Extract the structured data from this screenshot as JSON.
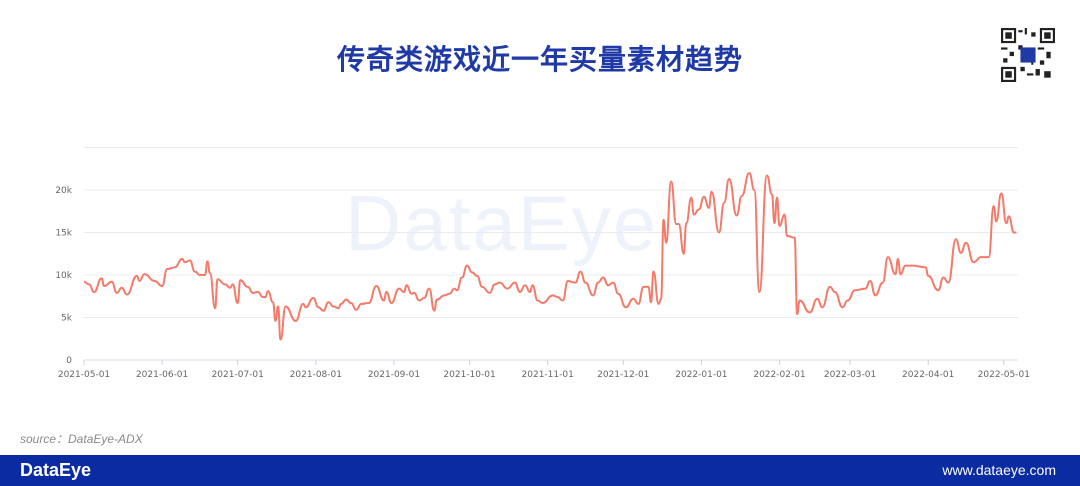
{
  "header": {
    "title": "传奇类游戏近一年买量素材趋势"
  },
  "watermark": "DataEye",
  "source": "source：DataEye-ADX",
  "footer": {
    "logo": "DataEye",
    "url": "www.dataeye.com"
  },
  "colors": {
    "line": "#f47a6a",
    "title": "#1f3aa6",
    "footer": "#0a2ba1",
    "grid": "#e8ecf2"
  },
  "chart_data": {
    "type": "line",
    "title": "",
    "xlabel": "",
    "ylabel": "",
    "ylim": [
      0,
      25000
    ],
    "grid": true,
    "y_ticks": [
      {
        "value": 0,
        "label": "0"
      },
      {
        "value": 5000,
        "label": "5k"
      },
      {
        "value": 10000,
        "label": "10k"
      },
      {
        "value": 15000,
        "label": "15k"
      },
      {
        "value": 20000,
        "label": "20k"
      }
    ],
    "x_ticks": [
      "2021-05-01",
      "2021-06-01",
      "2021-07-01",
      "2021-08-01",
      "2021-09-01",
      "2021-10-01",
      "2021-11-01",
      "2021-12-01",
      "2022-01-01",
      "2022-02-01",
      "2022-03-01",
      "2022-04-01",
      "2022-05-01"
    ],
    "series": [
      {
        "points": [
          [
            "2021-05-01",
            9200
          ],
          [
            "2021-05-03",
            8900
          ],
          [
            "2021-05-05",
            8000
          ],
          [
            "2021-05-08",
            9600
          ],
          [
            "2021-05-09",
            8700
          ],
          [
            "2021-05-12",
            9200
          ],
          [
            "2021-05-14",
            7900
          ],
          [
            "2021-05-16",
            8500
          ],
          [
            "2021-05-18",
            7700
          ],
          [
            "2021-05-22",
            9900
          ],
          [
            "2021-05-23",
            9300
          ],
          [
            "2021-05-25",
            10100
          ],
          [
            "2021-05-29",
            9300
          ],
          [
            "2021-06-01",
            8700
          ],
          [
            "2021-06-03",
            10700
          ],
          [
            "2021-06-06",
            10900
          ],
          [
            "2021-06-09",
            11900
          ],
          [
            "2021-06-10",
            11500
          ],
          [
            "2021-06-12",
            11700
          ],
          [
            "2021-06-14",
            10400
          ],
          [
            "2021-06-16",
            10000
          ],
          [
            "2021-06-18",
            10000
          ],
          [
            "2021-06-19",
            11600
          ],
          [
            "2021-06-20",
            10200
          ],
          [
            "2021-06-22",
            6100
          ],
          [
            "2021-06-23",
            9500
          ],
          [
            "2021-06-26",
            8900
          ],
          [
            "2021-06-28",
            8500
          ],
          [
            "2021-06-29",
            8900
          ],
          [
            "2021-07-01",
            6700
          ],
          [
            "2021-07-02",
            9400
          ],
          [
            "2021-07-05",
            8600
          ],
          [
            "2021-07-07",
            7900
          ],
          [
            "2021-07-09",
            8000
          ],
          [
            "2021-07-11",
            7400
          ],
          [
            "2021-07-12",
            7400
          ],
          [
            "2021-07-13",
            8100
          ],
          [
            "2021-07-15",
            6800
          ],
          [
            "2021-07-16",
            4600
          ],
          [
            "2021-07-17",
            6300
          ],
          [
            "2021-07-18",
            2400
          ],
          [
            "2021-07-20",
            6300
          ],
          [
            "2021-07-24",
            4600
          ],
          [
            "2021-07-27",
            6600
          ],
          [
            "2021-07-28",
            6200
          ],
          [
            "2021-07-31",
            7300
          ],
          [
            "2021-08-02",
            6200
          ],
          [
            "2021-08-04",
            5800
          ],
          [
            "2021-08-06",
            6800
          ],
          [
            "2021-08-08",
            6300
          ],
          [
            "2021-08-10",
            6100
          ],
          [
            "2021-08-11",
            6600
          ],
          [
            "2021-08-13",
            7100
          ],
          [
            "2021-08-15",
            6700
          ],
          [
            "2021-08-17",
            5900
          ],
          [
            "2021-08-19",
            6600
          ],
          [
            "2021-08-22",
            6700
          ],
          [
            "2021-08-25",
            8700
          ],
          [
            "2021-08-28",
            7000
          ],
          [
            "2021-08-29",
            8000
          ],
          [
            "2021-08-31",
            6700
          ],
          [
            "2021-09-03",
            8400
          ],
          [
            "2021-09-05",
            8000
          ],
          [
            "2021-09-06",
            8800
          ],
          [
            "2021-09-08",
            7800
          ],
          [
            "2021-09-09",
            7900
          ],
          [
            "2021-09-11",
            7000
          ],
          [
            "2021-09-13",
            7300
          ],
          [
            "2021-09-15",
            8400
          ],
          [
            "2021-09-17",
            5800
          ],
          [
            "2021-09-18",
            7100
          ],
          [
            "2021-09-21",
            7600
          ],
          [
            "2021-09-23",
            7800
          ],
          [
            "2021-09-25",
            8400
          ],
          [
            "2021-09-26",
            8200
          ],
          [
            "2021-09-28",
            9700
          ],
          [
            "2021-09-30",
            11100
          ],
          [
            "2021-10-02",
            10300
          ],
          [
            "2021-10-04",
            9900
          ],
          [
            "2021-10-06",
            8600
          ],
          [
            "2021-10-09",
            7900
          ],
          [
            "2021-10-11",
            8900
          ],
          [
            "2021-10-13",
            9100
          ],
          [
            "2021-10-16",
            8400
          ],
          [
            "2021-10-19",
            9100
          ],
          [
            "2021-10-21",
            8000
          ],
          [
            "2021-10-23",
            8800
          ],
          [
            "2021-10-25",
            8000
          ],
          [
            "2021-10-26",
            8800
          ],
          [
            "2021-10-28",
            7000
          ],
          [
            "2021-10-30",
            6700
          ],
          [
            "2021-11-03",
            7600
          ],
          [
            "2021-11-05",
            7400
          ],
          [
            "2021-11-07",
            7000
          ],
          [
            "2021-11-09",
            9300
          ],
          [
            "2021-11-12",
            9100
          ],
          [
            "2021-11-14",
            10400
          ],
          [
            "2021-11-16",
            9100
          ],
          [
            "2021-11-19",
            7600
          ],
          [
            "2021-11-21",
            9100
          ],
          [
            "2021-11-23",
            9700
          ],
          [
            "2021-11-25",
            8800
          ],
          [
            "2021-11-27",
            9100
          ],
          [
            "2021-11-29",
            7800
          ],
          [
            "2021-12-02",
            6200
          ],
          [
            "2021-12-05",
            7200
          ],
          [
            "2021-12-07",
            6600
          ],
          [
            "2021-12-09",
            8600
          ],
          [
            "2021-12-11",
            8600
          ],
          [
            "2021-12-12",
            6800
          ],
          [
            "2021-12-13",
            10400
          ],
          [
            "2021-12-15",
            6600
          ],
          [
            "2021-12-16",
            7200
          ],
          [
            "2021-12-17",
            16500
          ],
          [
            "2021-12-18",
            13800
          ],
          [
            "2021-12-20",
            21000
          ],
          [
            "2021-12-22",
            16000
          ],
          [
            "2021-12-23",
            16000
          ],
          [
            "2021-12-25",
            12500
          ],
          [
            "2021-12-26",
            16100
          ],
          [
            "2021-12-28",
            19100
          ],
          [
            "2021-12-29",
            17100
          ],
          [
            "2021-12-31",
            17700
          ],
          [
            "2022-01-02",
            19200
          ],
          [
            "2022-01-04",
            17900
          ],
          [
            "2022-01-05",
            19800
          ],
          [
            "2022-01-08",
            15000
          ],
          [
            "2022-01-10",
            18500
          ],
          [
            "2022-01-12",
            21300
          ],
          [
            "2022-01-15",
            17000
          ],
          [
            "2022-01-17",
            19300
          ],
          [
            "2022-01-20",
            22000
          ],
          [
            "2022-01-22",
            20000
          ],
          [
            "2022-01-24",
            8000
          ],
          [
            "2022-01-27",
            21700
          ],
          [
            "2022-01-29",
            19500
          ],
          [
            "2022-01-30",
            16100
          ],
          [
            "2022-01-31",
            19100
          ],
          [
            "2022-02-01",
            15800
          ],
          [
            "2022-02-03",
            17100
          ],
          [
            "2022-02-04",
            14600
          ],
          [
            "2022-02-07",
            14400
          ],
          [
            "2022-02-08",
            5400
          ],
          [
            "2022-02-09",
            7000
          ],
          [
            "2022-02-13",
            5600
          ],
          [
            "2022-02-16",
            7200
          ],
          [
            "2022-02-18",
            6200
          ],
          [
            "2022-02-21",
            8600
          ],
          [
            "2022-02-23",
            8000
          ],
          [
            "2022-02-26",
            6200
          ],
          [
            "2022-02-28",
            7000
          ],
          [
            "2022-03-03",
            8200
          ],
          [
            "2022-03-07",
            8400
          ],
          [
            "2022-03-09",
            9300
          ],
          [
            "2022-03-11",
            7600
          ],
          [
            "2022-03-14",
            9100
          ],
          [
            "2022-03-16",
            12100
          ],
          [
            "2022-03-19",
            10100
          ],
          [
            "2022-03-20",
            11900
          ],
          [
            "2022-03-21",
            10100
          ],
          [
            "2022-03-23",
            11100
          ],
          [
            "2022-03-26",
            11100
          ],
          [
            "2022-03-31",
            10900
          ],
          [
            "2022-04-01",
            9900
          ],
          [
            "2022-04-05",
            8200
          ],
          [
            "2022-04-07",
            9700
          ],
          [
            "2022-04-09",
            9100
          ],
          [
            "2022-04-12",
            14200
          ],
          [
            "2022-04-14",
            12600
          ],
          [
            "2022-04-16",
            13800
          ],
          [
            "2022-04-19",
            11500
          ],
          [
            "2022-04-22",
            12100
          ],
          [
            "2022-04-25",
            12100
          ],
          [
            "2022-04-27",
            18100
          ],
          [
            "2022-04-28",
            16300
          ],
          [
            "2022-04-30",
            19600
          ],
          [
            "2022-05-02",
            16100
          ],
          [
            "2022-05-03",
            16900
          ],
          [
            "2022-05-05",
            15000
          ],
          [
            "2022-05-06",
            15000
          ]
        ]
      }
    ]
  }
}
